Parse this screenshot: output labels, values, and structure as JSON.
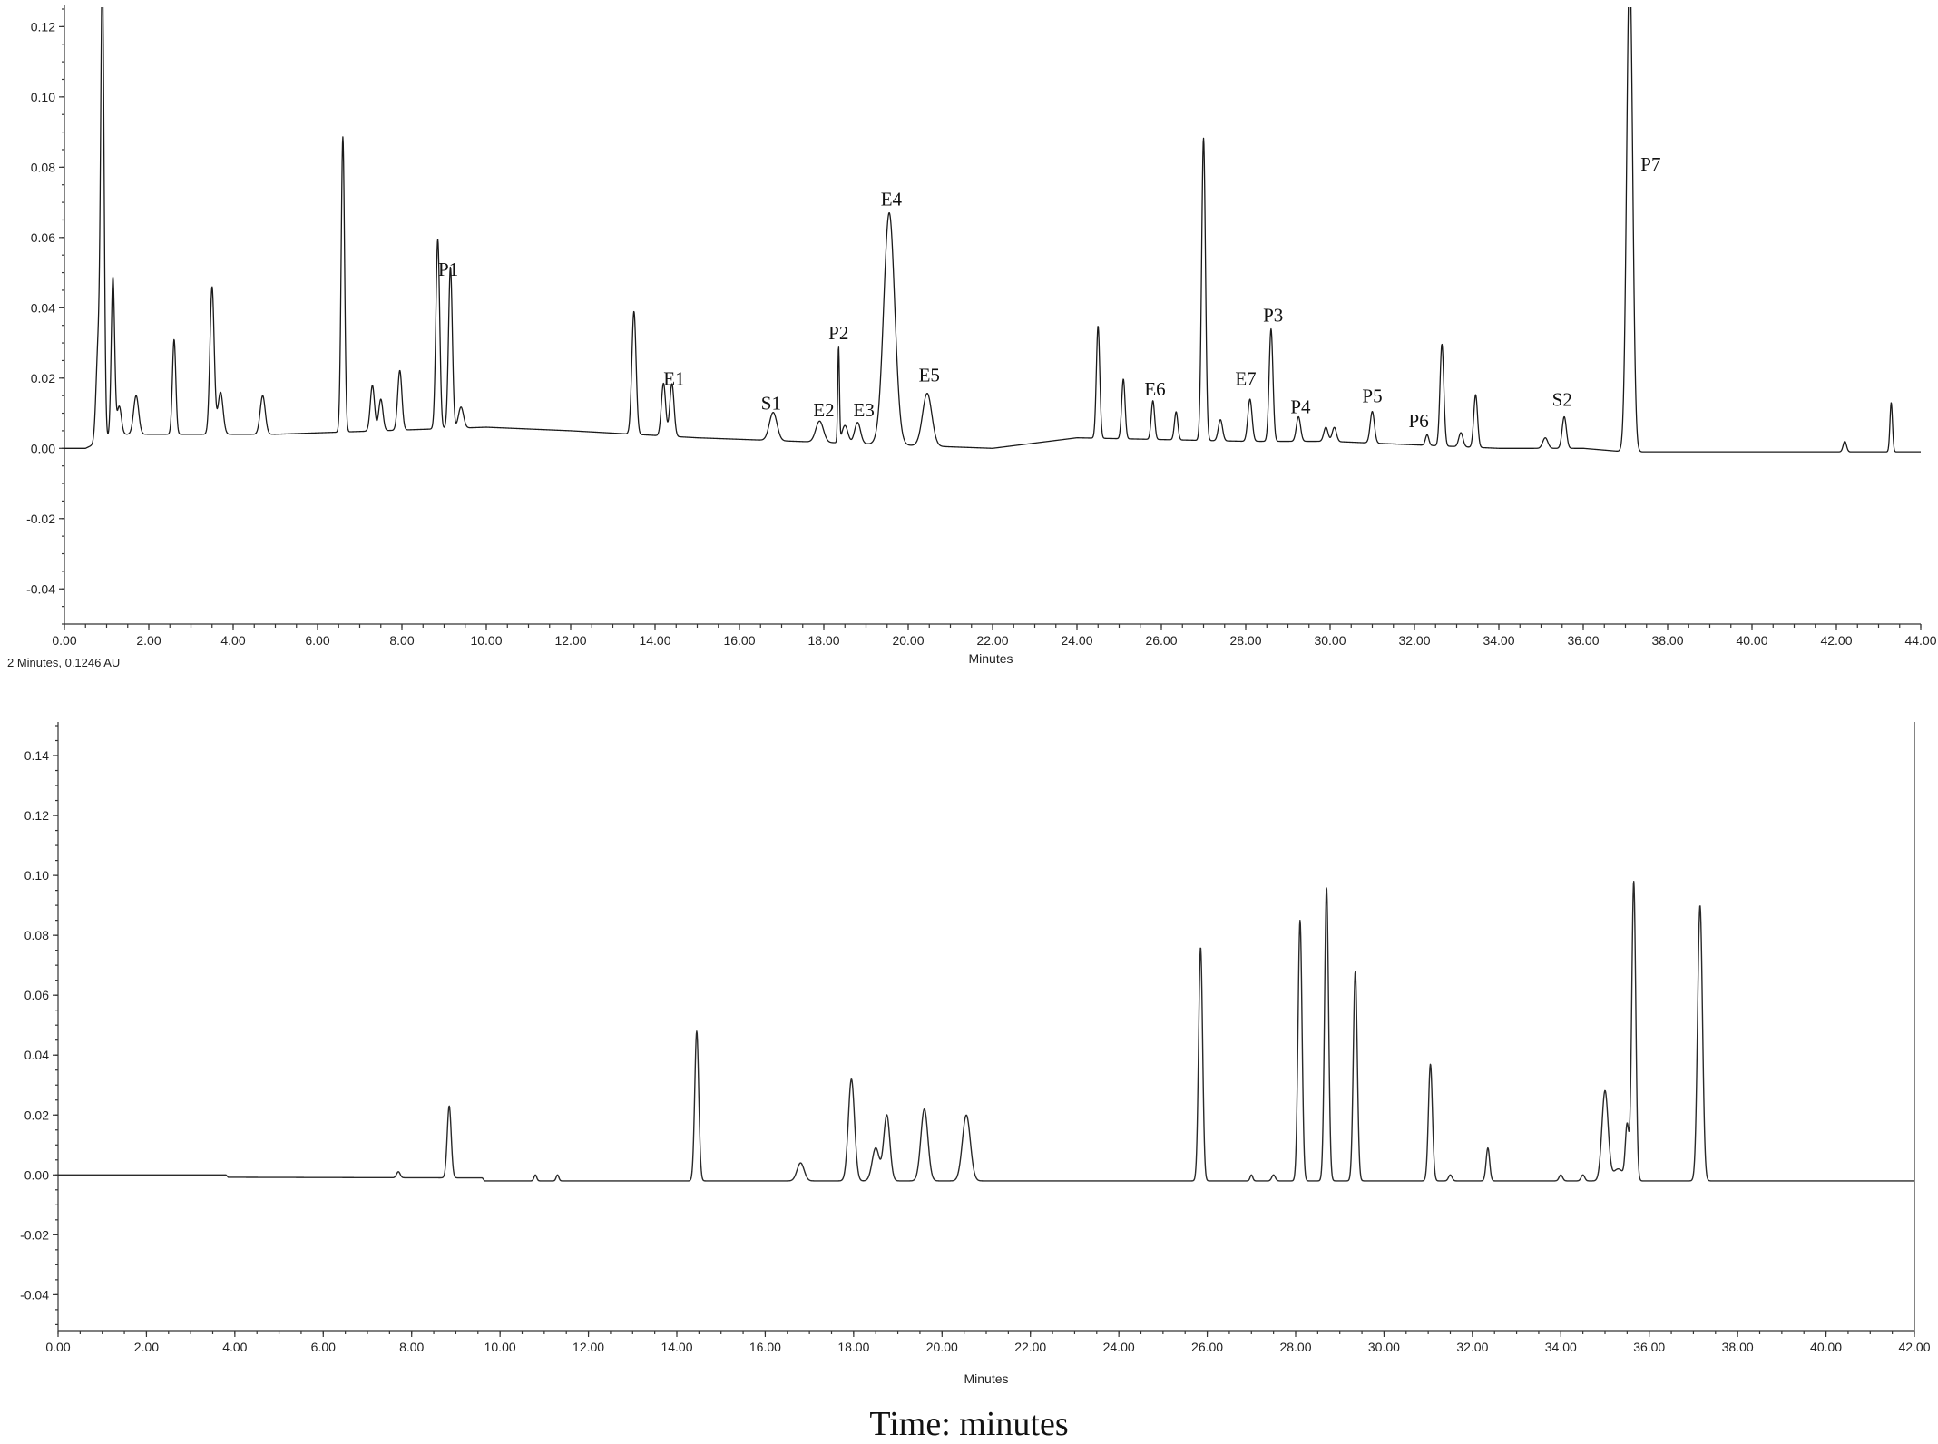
{
  "caption": "Time: minutes",
  "colors": {
    "trace": "#1a1a1a",
    "axis": "#333333",
    "background": "#ffffff"
  },
  "chart_data": [
    {
      "type": "line",
      "panel": "top",
      "xlabel": "Minutes",
      "ylabel": "",
      "info_text": "2 Minutes, 0.1246 AU",
      "xlim": [
        0,
        44
      ],
      "ylim": [
        -0.05,
        0.125
      ],
      "x_ticks": [
        "0.00",
        "2.00",
        "4.00",
        "6.00",
        "8.00",
        "10.00",
        "12.00",
        "14.00",
        "16.00",
        "18.00",
        "20.00",
        "22.00",
        "24.00",
        "26.00",
        "28.00",
        "30.00",
        "32.00",
        "34.00",
        "36.00",
        "38.00",
        "40.00",
        "42.00",
        "44.00"
      ],
      "y_ticks": [
        "-0.04",
        "-0.02",
        "0.00",
        "0.02",
        "0.04",
        "0.06",
        "0.08",
        "0.10",
        "0.12"
      ],
      "baseline_segments": [
        [
          0,
          0.0
        ],
        [
          0.5,
          0.0
        ],
        [
          1.2,
          0.004
        ],
        [
          5,
          0.004
        ],
        [
          10,
          0.006
        ],
        [
          12,
          0.005
        ],
        [
          15,
          0.003
        ],
        [
          22,
          0.0
        ],
        [
          24,
          0.003
        ],
        [
          28,
          0.002
        ],
        [
          30,
          0.002
        ],
        [
          34,
          0.0
        ],
        [
          36,
          0.0
        ],
        [
          37,
          -0.001
        ],
        [
          44,
          -0.001
        ]
      ],
      "peaks": [
        {
          "t": 0.8,
          "h": 0.027,
          "w": 0.05
        },
        {
          "t": 0.9,
          "h": 0.13,
          "w": 0.04
        },
        {
          "t": 1.15,
          "h": 0.045,
          "w": 0.04
        },
        {
          "t": 1.3,
          "h": 0.008,
          "w": 0.05
        },
        {
          "t": 1.7,
          "h": 0.011,
          "w": 0.06
        },
        {
          "t": 2.6,
          "h": 0.027,
          "w": 0.04
        },
        {
          "t": 3.5,
          "h": 0.042,
          "w": 0.05
        },
        {
          "t": 3.7,
          "h": 0.012,
          "w": 0.06
        },
        {
          "t": 4.7,
          "h": 0.011,
          "w": 0.06
        },
        {
          "t": 6.6,
          "h": 0.084,
          "w": 0.04
        },
        {
          "t": 7.3,
          "h": 0.013,
          "w": 0.05
        },
        {
          "t": 7.5,
          "h": 0.009,
          "w": 0.05
        },
        {
          "t": 7.95,
          "h": 0.017,
          "w": 0.05
        },
        {
          "t": 8.85,
          "h": 0.054,
          "w": 0.045
        },
        {
          "t": 9.15,
          "h": 0.046,
          "w": 0.045
        },
        {
          "t": 9.4,
          "h": 0.006,
          "w": 0.06
        },
        {
          "t": 13.5,
          "h": 0.035,
          "w": 0.05
        },
        {
          "t": 14.2,
          "h": 0.015,
          "w": 0.05
        },
        {
          "t": 14.4,
          "h": 0.015,
          "w": 0.05
        },
        {
          "t": 16.8,
          "h": 0.008,
          "w": 0.09
        },
        {
          "t": 17.9,
          "h": 0.006,
          "w": 0.09
        },
        {
          "t": 18.35,
          "h": 0.027,
          "w": 0.02
        },
        {
          "t": 18.5,
          "h": 0.005,
          "w": 0.07
        },
        {
          "t": 18.8,
          "h": 0.006,
          "w": 0.07
        },
        {
          "t": 19.55,
          "h": 0.066,
          "w": 0.13
        },
        {
          "t": 20.45,
          "h": 0.015,
          "w": 0.11
        },
        {
          "t": 24.5,
          "h": 0.032,
          "w": 0.04
        },
        {
          "t": 25.1,
          "h": 0.017,
          "w": 0.04
        },
        {
          "t": 25.8,
          "h": 0.011,
          "w": 0.04
        },
        {
          "t": 26.35,
          "h": 0.008,
          "w": 0.04
        },
        {
          "t": 27.0,
          "h": 0.086,
          "w": 0.045
        },
        {
          "t": 27.4,
          "h": 0.006,
          "w": 0.05
        },
        {
          "t": 28.1,
          "h": 0.012,
          "w": 0.05
        },
        {
          "t": 28.6,
          "h": 0.032,
          "w": 0.045
        },
        {
          "t": 29.25,
          "h": 0.007,
          "w": 0.05
        },
        {
          "t": 29.9,
          "h": 0.004,
          "w": 0.05
        },
        {
          "t": 30.1,
          "h": 0.004,
          "w": 0.05
        },
        {
          "t": 31.0,
          "h": 0.009,
          "w": 0.05
        },
        {
          "t": 32.3,
          "h": 0.003,
          "w": 0.04
        },
        {
          "t": 32.65,
          "h": 0.029,
          "w": 0.045
        },
        {
          "t": 33.1,
          "h": 0.004,
          "w": 0.05
        },
        {
          "t": 33.45,
          "h": 0.015,
          "w": 0.045
        },
        {
          "t": 35.1,
          "h": 0.003,
          "w": 0.06
        },
        {
          "t": 35.55,
          "h": 0.009,
          "w": 0.05
        },
        {
          "t": 37.1,
          "h": 0.14,
          "w": 0.07
        },
        {
          "t": 42.2,
          "h": 0.003,
          "w": 0.04
        },
        {
          "t": 43.3,
          "h": 0.014,
          "w": 0.03
        }
      ],
      "annotations": [
        {
          "label": "P1",
          "t": 9.1,
          "y": 0.047
        },
        {
          "label": "E1",
          "t": 14.45,
          "y": 0.016
        },
        {
          "label": "S1",
          "t": 16.75,
          "y": 0.009
        },
        {
          "label": "E2",
          "t": 18.0,
          "y": 0.007
        },
        {
          "label": "P2",
          "t": 18.35,
          "y": 0.029
        },
        {
          "label": "E3",
          "t": 18.95,
          "y": 0.007
        },
        {
          "label": "E4",
          "t": 19.6,
          "y": 0.067
        },
        {
          "label": "E5",
          "t": 20.5,
          "y": 0.017
        },
        {
          "label": "E6",
          "t": 25.85,
          "y": 0.013
        },
        {
          "label": "E7",
          "t": 28.0,
          "y": 0.016
        },
        {
          "label": "P3",
          "t": 28.65,
          "y": 0.034
        },
        {
          "label": "P4",
          "t": 29.3,
          "y": 0.008
        },
        {
          "label": "P5",
          "t": 31.0,
          "y": 0.011
        },
        {
          "label": "P6",
          "t": 32.1,
          "y": 0.004
        },
        {
          "label": "S2",
          "t": 35.5,
          "y": 0.01
        },
        {
          "label": "P7",
          "t": 37.6,
          "y": 0.077
        }
      ]
    },
    {
      "type": "line",
      "panel": "bottom",
      "xlabel": "Minutes",
      "ylabel": "",
      "xlim": [
        0,
        42
      ],
      "ylim": [
        -0.052,
        0.15
      ],
      "x_ticks": [
        "0.00",
        "2.00",
        "4.00",
        "6.00",
        "8.00",
        "10.00",
        "12.00",
        "14.00",
        "16.00",
        "18.00",
        "20.00",
        "22.00",
        "24.00",
        "26.00",
        "28.00",
        "30.00",
        "32.00",
        "34.00",
        "36.00",
        "38.00",
        "40.00",
        "42.00"
      ],
      "y_ticks": [
        "-0.04",
        "-0.02",
        "0.00",
        "0.02",
        "0.04",
        "0.06",
        "0.08",
        "0.10",
        "0.12",
        "0.14"
      ],
      "baseline_segments": [
        [
          0,
          0.0
        ],
        [
          3.8,
          0.0
        ],
        [
          3.85,
          -0.0008
        ],
        [
          9.6,
          -0.001
        ],
        [
          9.65,
          -0.002
        ],
        [
          42,
          -0.002
        ]
      ],
      "peaks": [
        {
          "t": 7.7,
          "h": 0.002,
          "w": 0.04
        },
        {
          "t": 8.85,
          "h": 0.024,
          "w": 0.045
        },
        {
          "t": 10.8,
          "h": 0.002,
          "w": 0.03
        },
        {
          "t": 11.3,
          "h": 0.002,
          "w": 0.03
        },
        {
          "t": 14.45,
          "h": 0.05,
          "w": 0.045
        },
        {
          "t": 16.8,
          "h": 0.006,
          "w": 0.08
        },
        {
          "t": 17.95,
          "h": 0.034,
          "w": 0.07
        },
        {
          "t": 18.5,
          "h": 0.011,
          "w": 0.08
        },
        {
          "t": 18.75,
          "h": 0.022,
          "w": 0.07
        },
        {
          "t": 19.6,
          "h": 0.024,
          "w": 0.08
        },
        {
          "t": 20.55,
          "h": 0.022,
          "w": 0.09
        },
        {
          "t": 25.85,
          "h": 0.078,
          "w": 0.045
        },
        {
          "t": 27.0,
          "h": 0.002,
          "w": 0.03
        },
        {
          "t": 27.5,
          "h": 0.002,
          "w": 0.04
        },
        {
          "t": 28.1,
          "h": 0.087,
          "w": 0.045
        },
        {
          "t": 28.7,
          "h": 0.098,
          "w": 0.045
        },
        {
          "t": 29.35,
          "h": 0.07,
          "w": 0.045
        },
        {
          "t": 31.05,
          "h": 0.039,
          "w": 0.045
        },
        {
          "t": 31.5,
          "h": 0.002,
          "w": 0.04
        },
        {
          "t": 32.35,
          "h": 0.011,
          "w": 0.04
        },
        {
          "t": 34.0,
          "h": 0.002,
          "w": 0.04
        },
        {
          "t": 34.5,
          "h": 0.002,
          "w": 0.04
        },
        {
          "t": 35.0,
          "h": 0.03,
          "w": 0.07
        },
        {
          "t": 35.3,
          "h": 0.004,
          "w": 0.12
        },
        {
          "t": 35.5,
          "h": 0.018,
          "w": 0.04
        },
        {
          "t": 35.65,
          "h": 0.1,
          "w": 0.045
        },
        {
          "t": 37.15,
          "h": 0.092,
          "w": 0.055
        }
      ],
      "annotations": []
    }
  ]
}
